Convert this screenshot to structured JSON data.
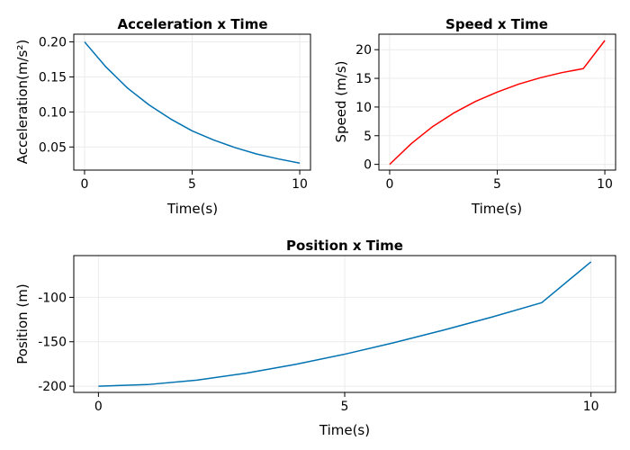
{
  "chart_data": [
    {
      "type": "line",
      "title": "Acceleration x Time",
      "xlabel": "Time(s)",
      "ylabel": "Acceleration(m/s²)",
      "xlim": [
        -0.5,
        10.5
      ],
      "ylim": [
        0.017,
        0.211
      ],
      "xticks": [
        0,
        5,
        10
      ],
      "xtick_labels": [
        "0",
        "5",
        "10"
      ],
      "yticks": [
        0.05,
        0.1,
        0.15,
        0.2
      ],
      "ytick_labels": [
        "0.05",
        "0.10",
        "0.15",
        "0.20"
      ],
      "grid": true,
      "series": [
        {
          "color": "#0072b2",
          "x": [
            0,
            1,
            2,
            3,
            4,
            5,
            6,
            7,
            8,
            9,
            10
          ],
          "y": [
            0.2,
            0.164,
            0.134,
            0.11,
            0.09,
            0.073,
            0.06,
            0.049,
            0.04,
            0.033,
            0.027
          ]
        }
      ]
    },
    {
      "type": "line",
      "title": "Speed x Time",
      "xlabel": "Time(s)",
      "ylabel": "Speed (m/s)",
      "xlim": [
        -0.5,
        10.5
      ],
      "ylim": [
        -1.0,
        22.7
      ],
      "xticks": [
        0,
        5,
        10
      ],
      "xtick_labels": [
        "0",
        "5",
        "10"
      ],
      "yticks": [
        0,
        5,
        10,
        15,
        20
      ],
      "ytick_labels": [
        "0",
        "5",
        "10",
        "15",
        "20"
      ],
      "grid": true,
      "series": [
        {
          "color": "#ff0000",
          "x": [
            0,
            1,
            2,
            3,
            4,
            5,
            6,
            7,
            8,
            9,
            10
          ],
          "y": [
            0.0,
            3.6,
            6.6,
            9.0,
            11.0,
            12.6,
            14.0,
            15.1,
            16.0,
            16.7,
            21.6
          ]
        }
      ]
    },
    {
      "type": "line",
      "title": "Position x Time",
      "xlabel": "Time(s)",
      "ylabel": "Position (m)",
      "xlim": [
        -0.5,
        10.5
      ],
      "ylim": [
        -207,
        -53
      ],
      "xticks": [
        0,
        5,
        10
      ],
      "xtick_labels": [
        "0",
        "5",
        "10"
      ],
      "yticks": [
        -200,
        -150,
        -100
      ],
      "ytick_labels": [
        "-200",
        "-150",
        "-100"
      ],
      "grid": true,
      "series": [
        {
          "color": "#0072b2",
          "x": [
            0,
            1,
            2,
            3,
            4,
            5,
            6,
            7,
            8,
            9,
            10
          ],
          "y": [
            -200.0,
            -198.2,
            -193.2,
            -185.3,
            -175.5,
            -164.0,
            -151.0,
            -137.0,
            -122.0,
            -106.0,
            -60.0
          ]
        }
      ]
    }
  ]
}
